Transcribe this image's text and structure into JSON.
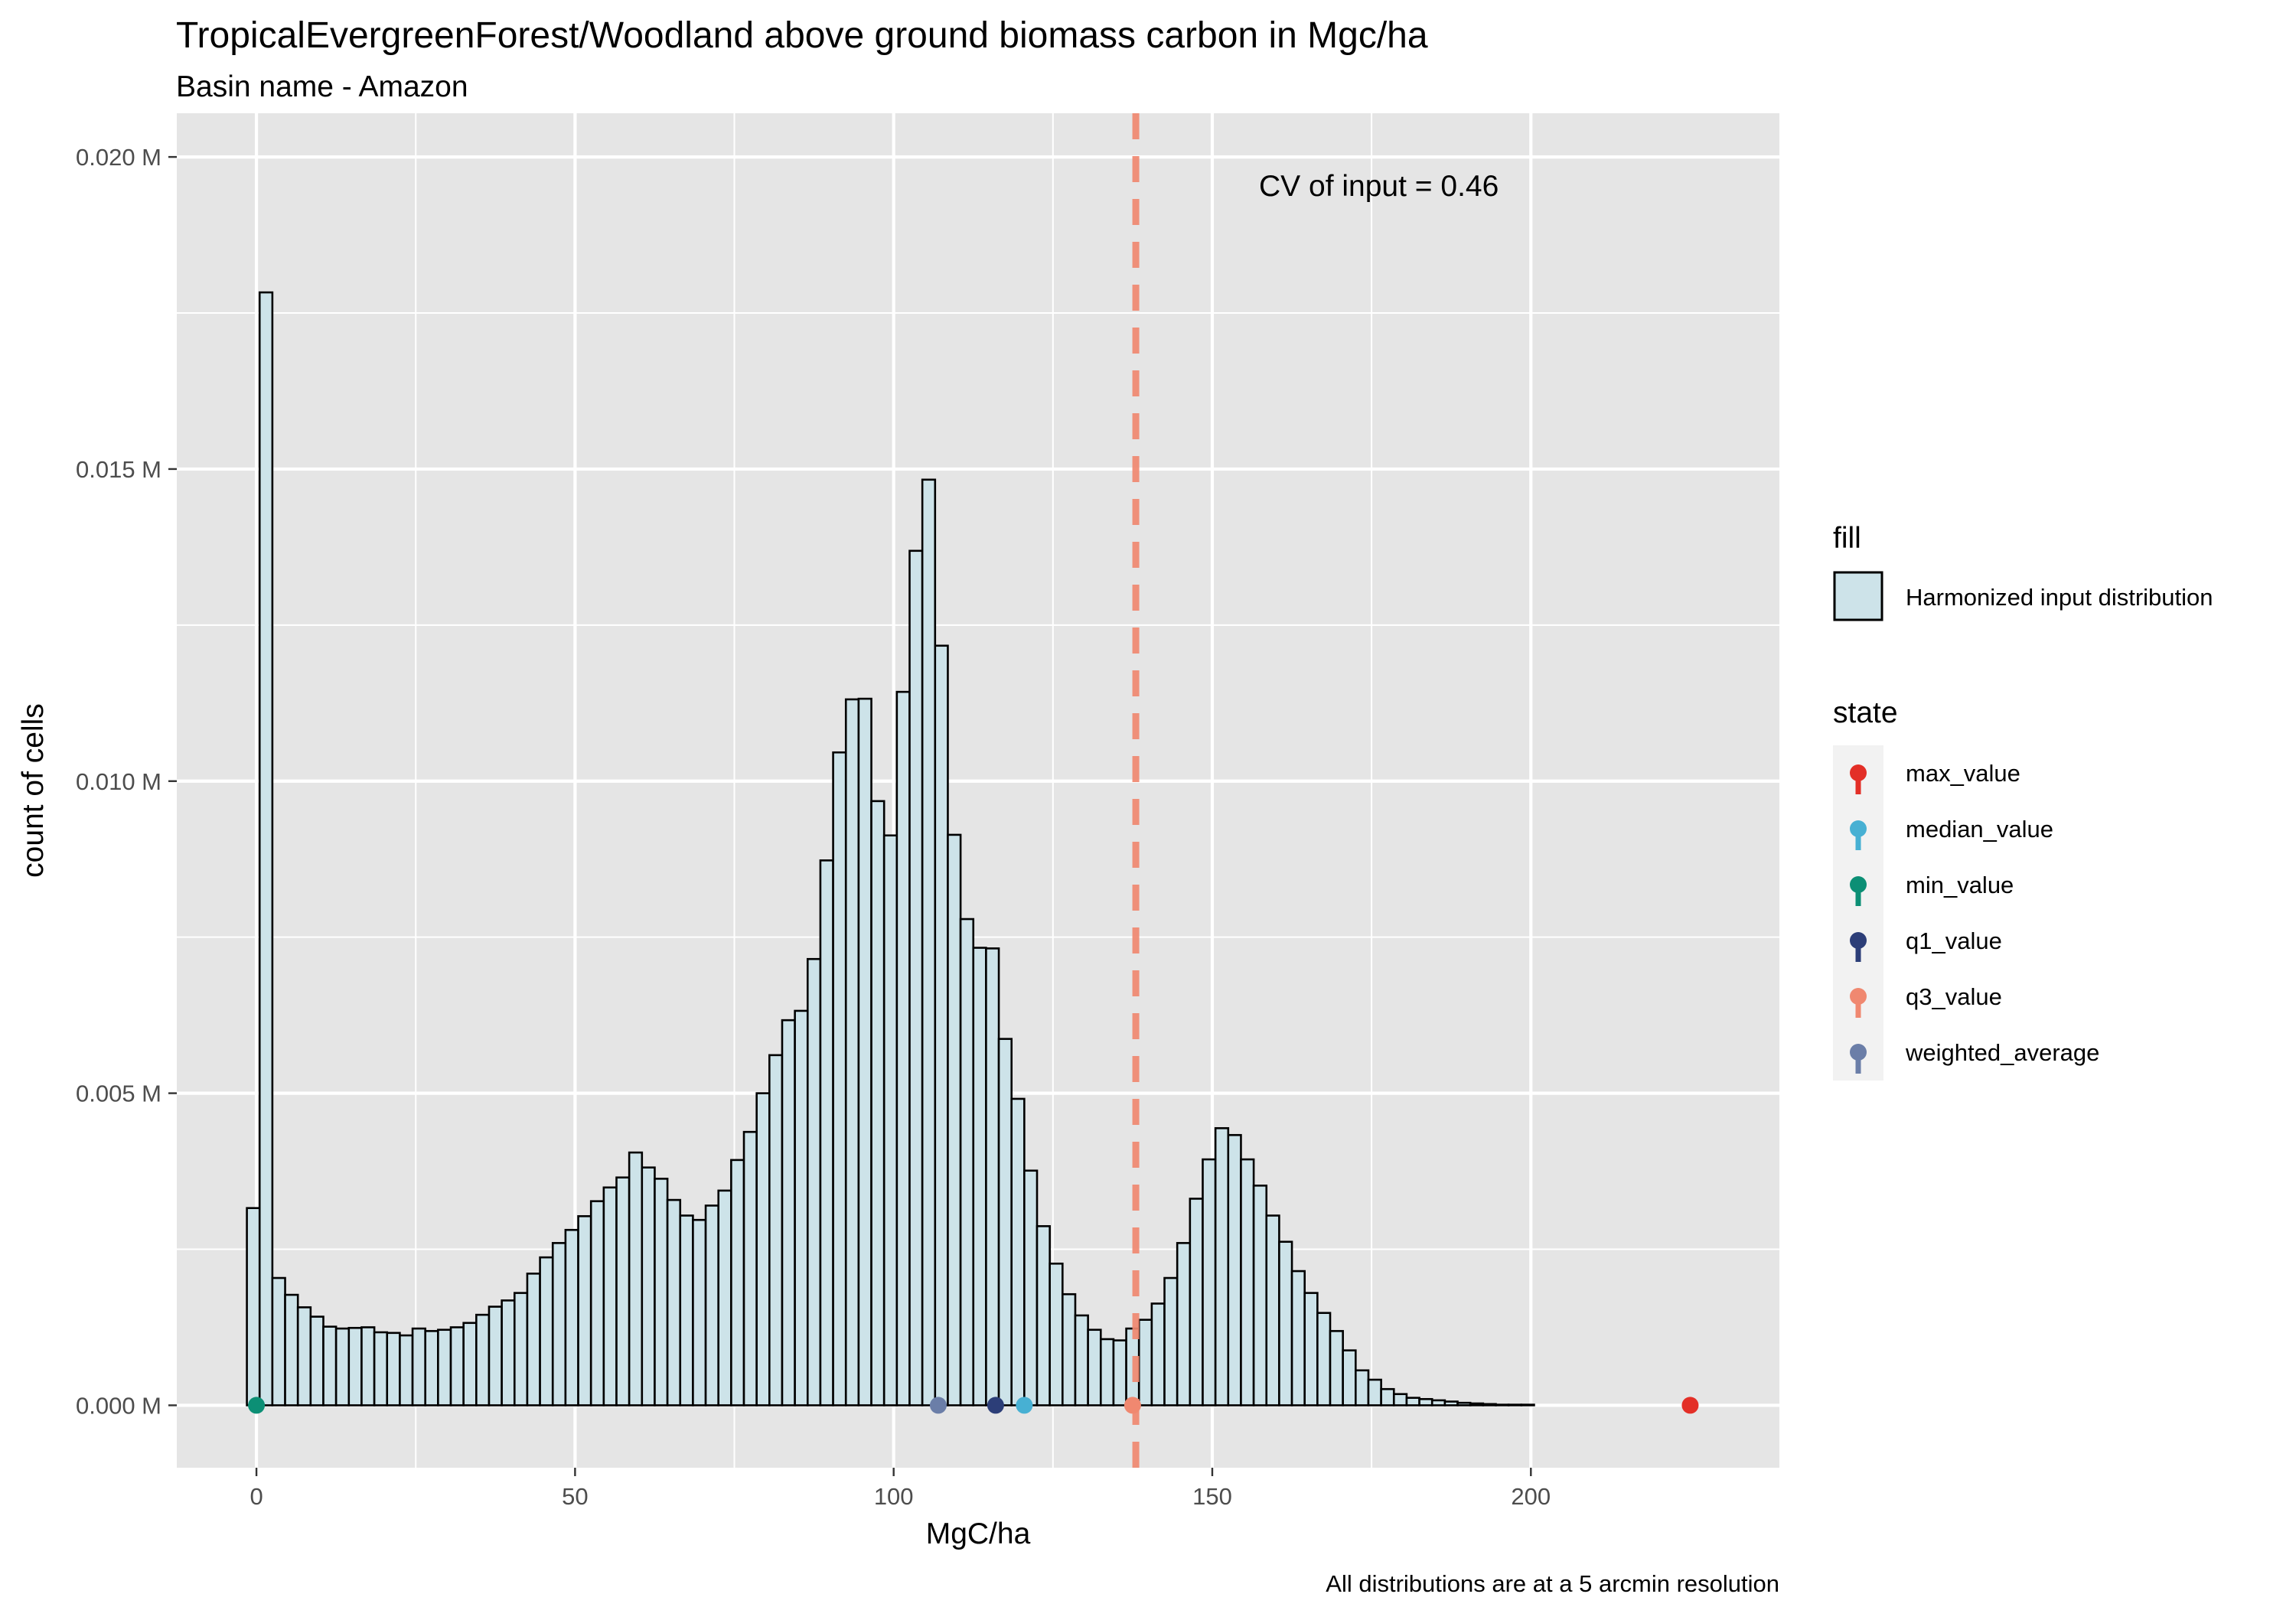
{
  "chart_data": {
    "type": "bar",
    "title": "TropicalEvergreenForest/Woodland above ground biomass carbon in Mgc/ha",
    "subtitle": "Basin name - Amazon",
    "xlabel": "MgC/ha",
    "ylabel": "count of cells",
    "caption": "All distributions are at a 5 arcmin resolution",
    "annotation": "CV of input = 0.46",
    "xlim": [
      -12.5,
      239
    ],
    "ylim": [
      -0.001,
      0.0207
    ],
    "x_ticks": [
      0,
      50,
      100,
      150,
      200
    ],
    "x_tick_labels": [
      "0",
      "50",
      "100",
      "150",
      "200"
    ],
    "y_ticks": [
      0,
      0.005,
      0.01,
      0.015,
      0.02
    ],
    "y_tick_labels": [
      "0.000 M",
      "0.005 M",
      "0.010 M",
      "0.015 M",
      "0.020 M"
    ],
    "grid": true,
    "legend_position": "right",
    "bin_width": 2,
    "bin_start": -1.5,
    "fill_legend_title": "fill",
    "fill_series_name": "Harmonized input distribution",
    "fill_color": "#cde3e9",
    "bar_outline_color": "#000000",
    "values": [
      0.00316,
      0.01783,
      0.00204,
      0.00177,
      0.00157,
      0.00142,
      0.00126,
      0.00123,
      0.00124,
      0.00125,
      0.00117,
      0.00116,
      0.00112,
      0.00123,
      0.00119,
      0.00121,
      0.00125,
      0.00132,
      0.00145,
      0.00158,
      0.00168,
      0.0018,
      0.00211,
      0.00237,
      0.0026,
      0.00281,
      0.00303,
      0.00327,
      0.00349,
      0.00365,
      0.00405,
      0.00381,
      0.00363,
      0.00329,
      0.00304,
      0.00297,
      0.0032,
      0.00344,
      0.00393,
      0.00438,
      0.005,
      0.00561,
      0.00617,
      0.00632,
      0.00715,
      0.00873,
      0.01046,
      0.01131,
      0.01132,
      0.00968,
      0.00913,
      0.01143,
      0.01369,
      0.01483,
      0.01217,
      0.00914,
      0.00779,
      0.00733,
      0.00732,
      0.00587,
      0.00491,
      0.00376,
      0.00287,
      0.00227,
      0.00178,
      0.00144,
      0.00121,
      0.00106,
      0.00104,
      0.00123,
      0.00137,
      0.00163,
      0.00204,
      0.0026,
      0.00331,
      0.00394,
      0.00444,
      0.00433,
      0.00394,
      0.00352,
      0.00304,
      0.00262,
      0.00215,
      0.0018,
      0.00148,
      0.00119,
      0.00088,
      0.00056,
      0.00041,
      0.00026,
      0.00018,
      0.00012,
      0.0001,
      8e-05,
      6e-05,
      4e-05,
      3e-05,
      2e-05,
      1e-05,
      1e-05,
      1e-05
    ],
    "vline": {
      "x": 138,
      "color": "#f08870",
      "style": "dashed"
    },
    "state_legend_title": "state",
    "points": [
      {
        "name": "max_value",
        "x": 225,
        "y": 0,
        "color": "#e32f27"
      },
      {
        "name": "median_value",
        "x": 120.5,
        "y": 0,
        "color": "#47b0d3"
      },
      {
        "name": "min_value",
        "x": 0,
        "y": 0,
        "color": "#0c8f75"
      },
      {
        "name": "q1_value",
        "x": 116,
        "y": 0,
        "color": "#2c3e78"
      },
      {
        "name": "q3_value",
        "x": 137.5,
        "y": 0,
        "color": "#f08870"
      },
      {
        "name": "weighted_average",
        "x": 107,
        "y": 0,
        "color": "#6b7ea8"
      }
    ],
    "panel_background": "#e5e5e5",
    "grid_color": "#ffffff"
  }
}
